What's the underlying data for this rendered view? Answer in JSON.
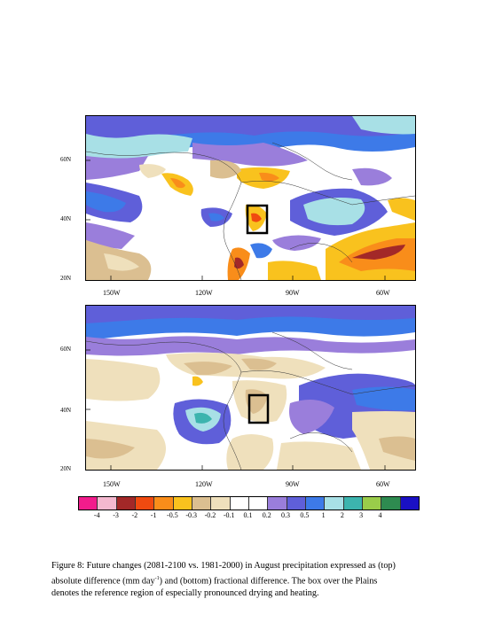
{
  "figure": {
    "lat_labels": [
      "60N",
      "40N",
      "20N"
    ],
    "lon_labels": [
      "150W",
      "120W",
      "90W",
      "60W"
    ],
    "legend": {
      "tick_labels": [
        "-4",
        "-3",
        "-2",
        "-1",
        "-0.5",
        "-0.3",
        "-0.2",
        "-0.1",
        "0.1",
        "0.2",
        "0.3",
        "0.5",
        "1",
        "2",
        "3",
        "4"
      ],
      "colors": [
        "#f21c8c",
        "#f4b8cf",
        "#a32828",
        "#f04a10",
        "#f98d1a",
        "#f9c21e",
        "#dbbf91",
        "#efe0bc",
        "#ffffff",
        "#ffffff",
        "#9a7edb",
        "#5f5fd9",
        "#3d7ae8",
        "#a8e0e6",
        "#3cb4ae",
        "#9acc4a",
        "#2e8b50",
        "#1a10c4"
      ]
    },
    "caption": {
      "line1": "Figure 8: Future changes (2081-2100 vs. 1981-2000) in August precipitation expressed as (top)",
      "line2_a": "absolute difference (mm day",
      "line2_sup": "-1",
      "line2_b": ") and (bottom) fractional difference.  The box over the Plains",
      "line3": "denotes the reference region of especially pronounced drying and heating."
    }
  }
}
